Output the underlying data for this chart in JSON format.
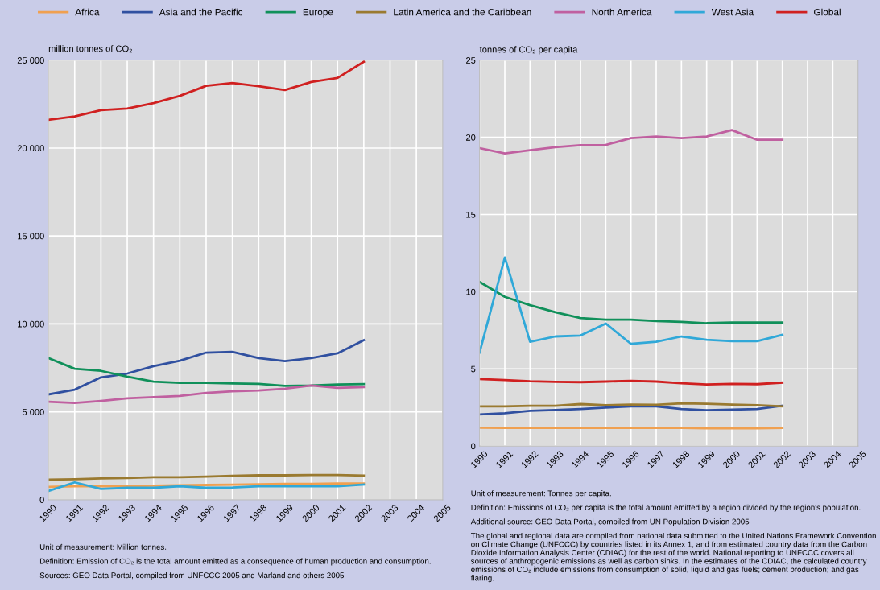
{
  "chart_data": [
    {
      "type": "line",
      "ylabel": "million tonnes of CO₂",
      "x": [
        1990,
        1991,
        1992,
        1993,
        1994,
        1995,
        1996,
        1997,
        1998,
        1999,
        2000,
        2001,
        2002
      ],
      "xlim": [
        1990,
        2005
      ],
      "xticks": [
        1990,
        1991,
        1992,
        1993,
        1994,
        1995,
        1996,
        1997,
        1998,
        1999,
        2000,
        2001,
        2002,
        2003,
        2004,
        2005
      ],
      "ylim": [
        0,
        25000
      ],
      "yticks": [
        {
          "value": 0,
          "label": "0"
        },
        {
          "value": 5000,
          "label": "5 000"
        },
        {
          "value": 10000,
          "label": "10 000"
        },
        {
          "value": 15000,
          "label": "15 000"
        },
        {
          "value": 20000,
          "label": "20 000"
        },
        {
          "value": 25000,
          "label": "25 000"
        }
      ],
      "grid": true,
      "legend": "top",
      "series": [
        {
          "name": "Africa",
          "color": "#f0a050",
          "values": [
            730,
            770,
            770,
            770,
            800,
            820,
            840,
            860,
            880,
            900,
            900,
            920,
            920
          ]
        },
        {
          "name": "Asia and the Pacific",
          "color": "#3050a0",
          "values": [
            5990,
            6260,
            6960,
            7180,
            7600,
            7910,
            8370,
            8410,
            8060,
            7880,
            8060,
            8330,
            9070
          ]
        },
        {
          "name": "Europe",
          "color": "#10905a",
          "values": [
            8060,
            7450,
            7330,
            7000,
            6720,
            6650,
            6650,
            6610,
            6590,
            6480,
            6500,
            6560,
            6580
          ]
        },
        {
          "name": "Latin America and the Caribbean",
          "color": "#9a7a30",
          "values": [
            1140,
            1170,
            1210,
            1230,
            1280,
            1280,
            1320,
            1360,
            1390,
            1390,
            1410,
            1410,
            1370
          ]
        },
        {
          "name": "North America",
          "color": "#c060a0",
          "values": [
            5570,
            5500,
            5620,
            5770,
            5840,
            5900,
            6080,
            6170,
            6210,
            6320,
            6500,
            6360,
            6410
          ]
        },
        {
          "name": "West Asia",
          "color": "#30a8d8",
          "values": [
            500,
            990,
            620,
            680,
            680,
            770,
            680,
            700,
            770,
            770,
            770,
            770,
            860
          ]
        },
        {
          "name": "Global",
          "color": "#d02020",
          "values": [
            21610,
            21800,
            22160,
            22250,
            22560,
            22970,
            23540,
            23700,
            23520,
            23300,
            23760,
            23990,
            24910
          ]
        }
      ],
      "annotations": [
        "Unit of measurement: Million tonnes.",
        "Definition: Emission of CO₂ is the total amount emitted as a consequence of human production and consumption.",
        "Sources: GEO Data Portal, compiled from UNFCCC 2005 and Marland and others 2005"
      ]
    },
    {
      "type": "line",
      "ylabel": "tonnes of CO₂ per capita",
      "x": [
        1990,
        1991,
        1992,
        1993,
        1994,
        1995,
        1996,
        1997,
        1998,
        1999,
        2000,
        2001,
        2002
      ],
      "xlim": [
        1990,
        2005
      ],
      "xticks": [
        1990,
        1991,
        1992,
        1993,
        1994,
        1995,
        1996,
        1997,
        1998,
        1999,
        2000,
        2001,
        2002,
        2003,
        2004,
        2005
      ],
      "ylim": [
        0,
        25
      ],
      "yticks": [
        0,
        5,
        10,
        15,
        20,
        25
      ],
      "grid": true,
      "series": [
        {
          "color": "#f0a050",
          "values": [
            1.19,
            1.17,
            1.17,
            1.17,
            1.17,
            1.17,
            1.17,
            1.17,
            1.17,
            1.15,
            1.15,
            1.15,
            1.17
          ]
        },
        {
          "color": "#3050a0",
          "values": [
            2.05,
            2.13,
            2.28,
            2.34,
            2.4,
            2.49,
            2.57,
            2.57,
            2.4,
            2.32,
            2.36,
            2.4,
            2.61
          ]
        },
        {
          "color": "#10905a",
          "values": [
            10.63,
            9.67,
            9.13,
            8.67,
            8.29,
            8.19,
            8.19,
            8.1,
            8.04,
            7.96,
            8.0,
            8.0,
            8.0
          ]
        },
        {
          "color": "#9a7a30",
          "values": [
            2.57,
            2.57,
            2.61,
            2.61,
            2.72,
            2.65,
            2.69,
            2.67,
            2.76,
            2.74,
            2.69,
            2.65,
            2.57
          ]
        },
        {
          "color": "#c060a0",
          "values": [
            19.3,
            18.96,
            19.17,
            19.36,
            19.49,
            19.51,
            19.95,
            20.05,
            19.95,
            20.05,
            20.47,
            19.84,
            19.84
          ]
        },
        {
          "color": "#30a8d8",
          "values": [
            6.06,
            12.22,
            6.75,
            7.1,
            7.16,
            7.94,
            6.62,
            6.75,
            7.1,
            6.89,
            6.79,
            6.79,
            7.21
          ]
        },
        {
          "color": "#d02020",
          "values": [
            4.34,
            4.28,
            4.2,
            4.16,
            4.14,
            4.18,
            4.22,
            4.18,
            4.07,
            3.99,
            4.03,
            4.01,
            4.11
          ]
        }
      ],
      "annotations": [
        "Unit of measurement: Tonnes per capita.",
        "Definition: Emissions of CO₂ per capita is the total amount emitted by a region divided by the region's population.",
        "Additional source: GEO Data Portal, compiled from UN Population Division 2005",
        "The global and regional data are compiled from national data submitted to the United Nations Framework Convention on Climate Change (UNFCCC) by countries listed in its Annex 1, and from estimated country data from the Carbon Dioxide Information Analysis Center (CDIAC) for the rest of the world. National reporting to UNFCCC covers all sources of anthropogenic emissions as well as carbon sinks. In the estimates of the CDIAC, the calculated country emissions of CO₂ include emissions from consumption of solid, liquid and gas fuels; cement production; and gas flaring."
      ]
    }
  ]
}
